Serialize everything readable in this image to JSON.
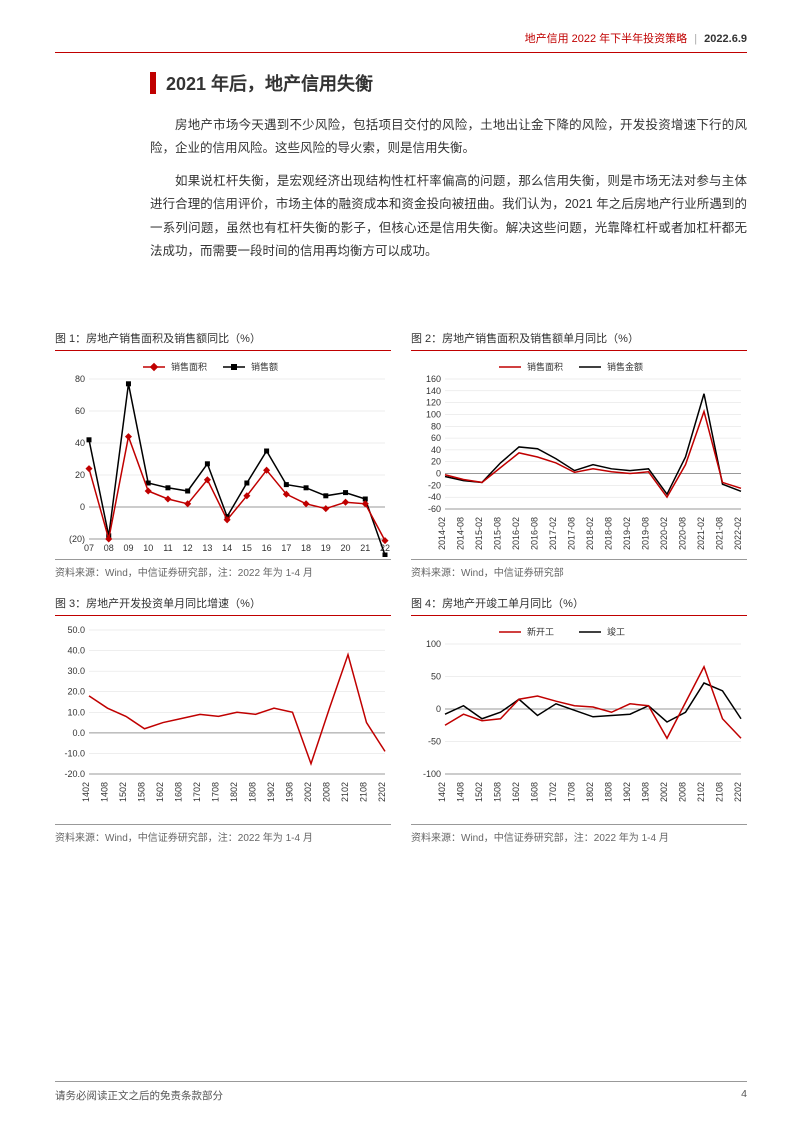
{
  "header": {
    "category": "地产信用 2022 年下半年投资策略",
    "date": "2022.6.9"
  },
  "section": {
    "title": "2021 年后，地产信用失衡"
  },
  "paragraphs": {
    "p1": "房地产市场今天遇到不少风险，包括项目交付的风险，土地出让金下降的风险，开发投资增速下行的风险，企业的信用风险。这些风险的导火索，则是信用失衡。",
    "p2": "如果说杠杆失衡，是宏观经济出现结构性杠杆率偏高的问题，那么信用失衡，则是市场无法对参与主体进行合理的信用评价，市场主体的融资成本和资金投向被扭曲。我们认为，2021 年之后房地产行业所遇到的一系列问题，虽然也有杠杆失衡的影子，但核心还是信用失衡。解决这些问题，光靠降杠杆或者加杠杆都无法成功，而需要一段时间的信用再均衡方可以成功。"
  },
  "charts": {
    "chart1": {
      "title": "图 1：房地产销售面积及销售额同比（%）",
      "source": "资料来源：Wind，中信证券研究部，注：2022 年为 1-4 月",
      "type": "line",
      "legend": [
        {
          "label": "销售面积",
          "color": "#c00000",
          "marker": "diamond"
        },
        {
          "label": "销售额",
          "color": "#000000",
          "marker": "square"
        }
      ],
      "x_labels": [
        "07",
        "08",
        "09",
        "10",
        "11",
        "12",
        "13",
        "14",
        "15",
        "16",
        "17",
        "18",
        "19",
        "20",
        "21",
        "22"
      ],
      "ylim": [
        -20,
        80
      ],
      "ytick_step": 20,
      "ytick_format": "paren_neg",
      "series": [
        {
          "name": "销售额",
          "color": "#000000",
          "marker": "square",
          "values": [
            42,
            -18,
            77,
            15,
            12,
            10,
            27,
            -6,
            15,
            35,
            14,
            12,
            7,
            9,
            5,
            -30
          ]
        },
        {
          "name": "销售面积",
          "color": "#c00000",
          "marker": "diamond",
          "values": [
            24,
            -20,
            44,
            10,
            5,
            2,
            17,
            -8,
            7,
            23,
            8,
            2,
            -1,
            3,
            2,
            -21
          ]
        }
      ],
      "background_color": "#ffffff",
      "grid_color": "#dddddd",
      "axis_fontsize": 9,
      "legend_fontsize": 10,
      "line_width": 1.5
    },
    "chart2": {
      "title": "图 2：房地产销售面积及销售额单月同比（%）",
      "source": "资料来源：Wind，中信证券研究部",
      "type": "line",
      "legend": [
        {
          "label": "销售面积",
          "color": "#c00000",
          "marker": "none"
        },
        {
          "label": "销售金额",
          "color": "#000000",
          "marker": "none"
        }
      ],
      "x_labels": [
        "2014-02",
        "2014-08",
        "2015-02",
        "2015-08",
        "2016-02",
        "2016-08",
        "2017-02",
        "2017-08",
        "2018-02",
        "2018-08",
        "2019-02",
        "2019-08",
        "2020-02",
        "2020-08",
        "2021-02",
        "2021-08",
        "2022-02"
      ],
      "x_label_rotate": true,
      "ylim": [
        -60,
        160
      ],
      "ytick_step": 20,
      "series": [
        {
          "name": "销售金额",
          "color": "#000000",
          "values": [
            -5,
            -12,
            -15,
            18,
            45,
            42,
            25,
            5,
            15,
            8,
            5,
            8,
            -35,
            28,
            135,
            -18,
            -30
          ]
        },
        {
          "name": "销售面积",
          "color": "#c00000",
          "values": [
            -2,
            -10,
            -15,
            10,
            35,
            28,
            18,
            2,
            8,
            3,
            0,
            3,
            -40,
            15,
            105,
            -15,
            -25
          ]
        }
      ],
      "background_color": "#ffffff",
      "grid_color": "#dddddd",
      "axis_fontsize": 9,
      "legend_fontsize": 10,
      "line_width": 1.5
    },
    "chart3": {
      "title": "图 3：房地产开发投资单月同比增速（%）",
      "source": "资料来源：Wind，中信证券研究部，注：2022 年为 1-4 月",
      "type": "line",
      "x_labels": [
        "1402",
        "1408",
        "1502",
        "1508",
        "1602",
        "1608",
        "1702",
        "1708",
        "1802",
        "1808",
        "1902",
        "1908",
        "2002",
        "2008",
        "2102",
        "2108",
        "2202"
      ],
      "x_label_rotate": true,
      "ylim": [
        -20,
        50
      ],
      "ytick_step": 10,
      "ytick_decimal": 1,
      "series": [
        {
          "name": "投资增速",
          "color": "#c00000",
          "values": [
            18,
            12,
            8,
            2,
            5,
            7,
            9,
            8,
            10,
            9,
            12,
            10,
            -15,
            12,
            38,
            5,
            -9
          ]
        }
      ],
      "background_color": "#ffffff",
      "grid_color": "#dddddd",
      "axis_fontsize": 9,
      "line_width": 1.5
    },
    "chart4": {
      "title": "图 4：房地产开竣工单月同比（%）",
      "source": "资料来源：Wind，中信证券研究部，注：2022 年为 1-4 月",
      "type": "line",
      "legend": [
        {
          "label": "新开工",
          "color": "#c00000",
          "marker": "none"
        },
        {
          "label": "竣工",
          "color": "#000000",
          "marker": "none"
        }
      ],
      "x_labels": [
        "1402",
        "1408",
        "1502",
        "1508",
        "1602",
        "1608",
        "1702",
        "1708",
        "1802",
        "1808",
        "1902",
        "1908",
        "2002",
        "2008",
        "2102",
        "2108",
        "2202"
      ],
      "x_label_rotate": true,
      "ylim": [
        -100,
        100
      ],
      "ytick_step": 50,
      "series": [
        {
          "name": "竣工",
          "color": "#000000",
          "values": [
            -8,
            5,
            -15,
            -5,
            15,
            -10,
            8,
            -2,
            -12,
            -10,
            -8,
            5,
            -20,
            -5,
            40,
            28,
            -15
          ]
        },
        {
          "name": "新开工",
          "color": "#c00000",
          "values": [
            -25,
            -8,
            -18,
            -15,
            15,
            20,
            12,
            5,
            3,
            -5,
            8,
            5,
            -45,
            10,
            65,
            -15,
            -45
          ]
        }
      ],
      "background_color": "#ffffff",
      "grid_color": "#dddddd",
      "axis_fontsize": 9,
      "legend_fontsize": 10,
      "line_width": 1.5
    }
  },
  "footer": {
    "disclaimer": "请务必阅读正文之后的免责条款部分",
    "page": "4"
  }
}
